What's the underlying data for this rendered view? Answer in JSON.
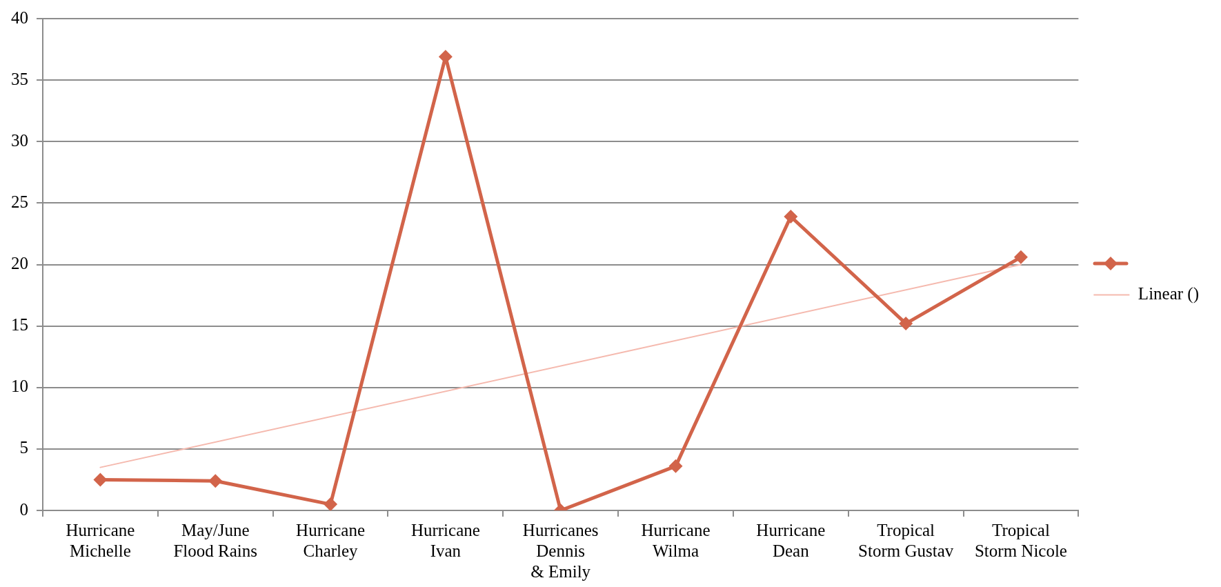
{
  "chart_data": {
    "type": "line",
    "categories": [
      "Hurricane Michelle",
      "May/June Flood Rains",
      "Hurricane Charley",
      "Hurricane Ivan",
      "Hurricanes Dennis & Emily",
      "Hurricane Wilma",
      "Hurricane Dean",
      "Tropical Storm Gustav",
      "Tropical Storm Nicole"
    ],
    "series": [
      {
        "color": "#d2644a",
        "values": [
          2.5,
          2.4,
          0.5,
          36.9,
          0,
          3.6,
          23.9,
          15.2,
          20.6
        ]
      },
      {
        "name": "Linear ()",
        "type": "line",
        "marker": "none",
        "x": [
          "Hurricane Michelle",
          "Tropical Storm Nicole"
        ],
        "values": [
          3.5,
          20
        ],
        "color": "#f5b9ae"
      }
    ],
    "ylim": [
      0,
      40
    ],
    "yticks": [
      0,
      5,
      10,
      15,
      20,
      25,
      30,
      35,
      40
    ],
    "grid": "y",
    "legend": "right",
    "marker": "diamond"
  }
}
